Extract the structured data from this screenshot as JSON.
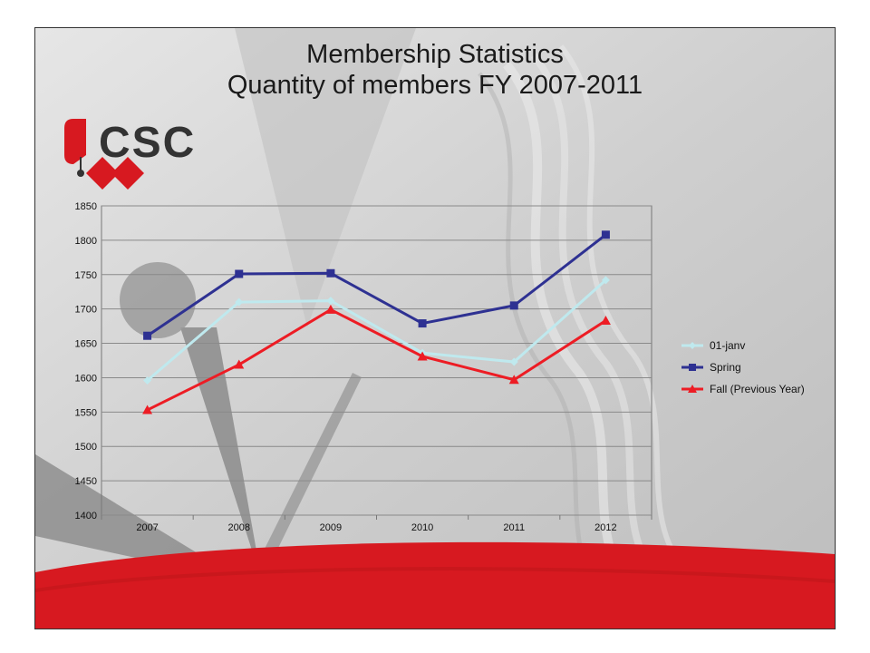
{
  "slide": {
    "title_line1": "Membership Statistics",
    "title_line2": "Quantity of members FY 2007-2011"
  },
  "logo": {
    "text": "CSC",
    "text_color": "#333333",
    "mark_color": "#d71920"
  },
  "colors": {
    "background": "#d4d4d4",
    "footer_band": "#d71920"
  },
  "chart_data": {
    "type": "line",
    "categories": [
      "2007",
      "2008",
      "2009",
      "2010",
      "2011",
      "2012"
    ],
    "ylim": [
      1400,
      1850
    ],
    "yticks": [
      1400,
      1450,
      1500,
      1550,
      1600,
      1650,
      1700,
      1750,
      1800,
      1850
    ],
    "grid": true,
    "legend_position": "right",
    "title": "",
    "xlabel": "",
    "ylabel": "",
    "series": [
      {
        "name": "01-janv",
        "color": "#bfe9ee",
        "marker": "diamond",
        "values": [
          1596,
          1710,
          1712,
          1636,
          1623,
          1742
        ]
      },
      {
        "name": "Spring",
        "color": "#2e3192",
        "marker": "square",
        "values": [
          1661,
          1751,
          1752,
          1679,
          1705,
          1808
        ]
      },
      {
        "name": "Fall (Previous Year)",
        "color": "#ed1c24",
        "marker": "triangle",
        "values": [
          1553,
          1619,
          1699,
          1631,
          1597,
          1683
        ]
      }
    ]
  }
}
